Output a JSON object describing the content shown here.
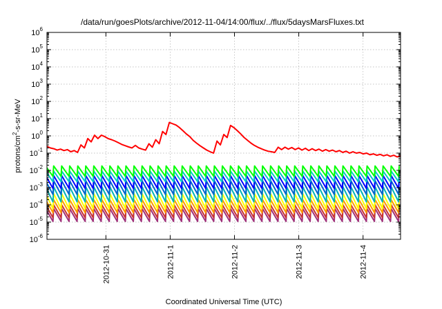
{
  "chart_data": {
    "type": "line",
    "title": "/data/run/goesPlots/archive/2012-11-04/14:00/flux/../flux/5daysMarsFluxes.txt",
    "xlabel": "Coordinated Universal Time (UTC)",
    "ylabel": {
      "prefix": "protons/cm",
      "sup": "2",
      "suffix": "-s-sr-MeV"
    },
    "yscale": "log",
    "ylim": [
      1e-06,
      1000000.0
    ],
    "yticks": [
      {
        "base": "10",
        "exp": "-6",
        "value": 1e-06
      },
      {
        "base": "10",
        "exp": "-5",
        "value": 1e-05
      },
      {
        "base": "10",
        "exp": "-4",
        "value": 0.0001
      },
      {
        "base": "10",
        "exp": "-3",
        "value": 0.001
      },
      {
        "base": "10",
        "exp": "-2",
        "value": 0.01
      },
      {
        "base": "10",
        "exp": "-1",
        "value": 0.1
      },
      {
        "base": "10",
        "exp": "0",
        "value": 1
      },
      {
        "base": "10",
        "exp": "1",
        "value": 10
      },
      {
        "base": "10",
        "exp": "2",
        "value": 100
      },
      {
        "base": "10",
        "exp": "3",
        "value": 1000
      },
      {
        "base": "10",
        "exp": "4",
        "value": 10000
      },
      {
        "base": "10",
        "exp": "5",
        "value": 100000
      },
      {
        "base": "10",
        "exp": "6",
        "value": 1000000
      }
    ],
    "xlim": [
      "2012-10-30T02:00",
      "2012-11-04T14:00"
    ],
    "xticks": [
      {
        "label": "2012-10-31",
        "value": "2012-10-31T00:00"
      },
      {
        "label": "2012-11-1",
        "value": "2012-11-01T00:00"
      },
      {
        "label": "2012-11-2",
        "value": "2012-11-02T00:00"
      },
      {
        "label": "2012-11-3",
        "value": "2012-11-03T00:00"
      },
      {
        "label": "2012-11-4",
        "value": "2012-11-04T00:00"
      }
    ],
    "grid": true,
    "legend": "none",
    "series": [
      {
        "color": "#ff0000",
        "values": [
          0.25,
          0.2,
          0.18,
          0.15,
          0.17,
          0.14,
          0.16,
          0.12,
          0.14,
          0.11,
          0.3,
          0.2,
          0.7,
          0.45,
          1.1,
          0.7,
          1.1,
          0.9,
          0.7,
          0.6,
          0.5,
          0.4,
          0.32,
          0.27,
          0.23,
          0.2,
          0.28,
          0.2,
          0.17,
          0.15,
          0.35,
          0.22,
          0.6,
          0.35,
          1.8,
          1.2,
          6.0,
          5.0,
          4.2,
          3.0,
          2.0,
          1.3,
          0.9,
          0.55,
          0.38,
          0.27,
          0.2,
          0.15,
          0.12,
          0.1,
          0.5,
          0.3,
          1.2,
          0.8,
          4.0,
          3.0,
          2.0,
          1.3,
          0.8,
          0.55,
          0.38,
          0.28,
          0.22,
          0.18,
          0.15,
          0.13,
          0.12,
          0.11,
          0.22,
          0.16,
          0.22,
          0.17,
          0.21,
          0.16,
          0.2,
          0.15,
          0.19,
          0.14,
          0.18,
          0.14,
          0.17,
          0.13,
          0.16,
          0.13,
          0.15,
          0.12,
          0.14,
          0.11,
          0.13,
          0.1,
          0.12,
          0.1,
          0.11,
          0.09,
          0.1,
          0.08,
          0.09,
          0.075,
          0.085,
          0.07,
          0.08,
          0.065,
          0.075,
          0.06,
          0.07
        ]
      },
      {
        "color": "#00ff00",
        "sawtooth": {
          "high": 0.018,
          "low": 0.0045,
          "cycles": 44
        }
      },
      {
        "color": "#00c8c8",
        "sawtooth": {
          "high": 0.009,
          "low": 0.0022,
          "cycles": 44
        }
      },
      {
        "color": "#0000ff",
        "sawtooth": {
          "high": 0.005,
          "low": 0.0009,
          "cycles": 44
        }
      },
      {
        "color": "#0066cc",
        "sawtooth": {
          "high": 0.0025,
          "low": 0.0004,
          "cycles": 44
        }
      },
      {
        "color": "#00b4b4",
        "sawtooth": {
          "high": 0.0011,
          "low": 0.00015,
          "cycles": 44
        }
      },
      {
        "color": "#ffff00",
        "sawtooth": {
          "high": 0.00045,
          "low": 6e-05,
          "cycles": 44
        }
      },
      {
        "color": "#ff9900",
        "sawtooth": {
          "high": 0.0002,
          "low": 3.5e-05,
          "cycles": 44
        }
      },
      {
        "color": "#c83232",
        "sawtooth": {
          "high": 0.0001,
          "low": 1.8e-05,
          "cycles": 44
        }
      },
      {
        "color": "#a0307a",
        "sawtooth": {
          "high": 6e-05,
          "low": 1.1e-05,
          "cycles": 44
        }
      }
    ]
  }
}
